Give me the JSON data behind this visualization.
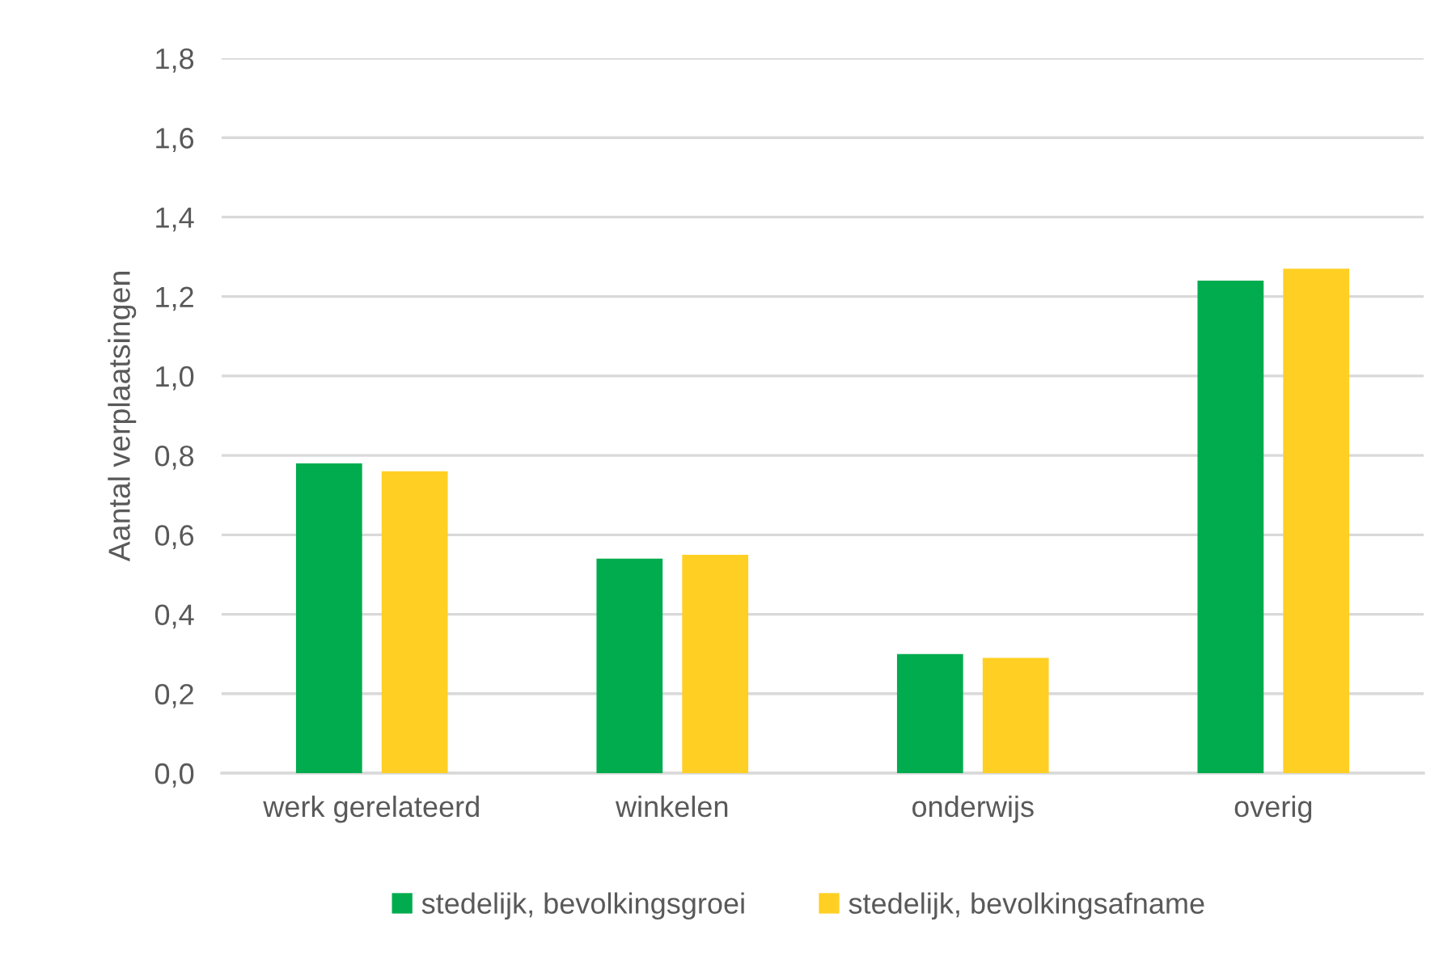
{
  "chart_data": {
    "type": "bar",
    "ylabel": "Aantal verplaatsingen",
    "categories": [
      "werk gerelateerd",
      "winkelen",
      "onderwijs",
      "overig"
    ],
    "series": [
      {
        "name": "stedelijk, bevolkingsgroei",
        "color": "#00ac4e",
        "values": [
          0.78,
          0.54,
          0.3,
          1.24
        ]
      },
      {
        "name": "stedelijk, bevolkingsafname",
        "color": "#ffcf23",
        "values": [
          0.76,
          0.55,
          0.29,
          1.27
        ]
      }
    ],
    "ylim": [
      0,
      1.8
    ],
    "yticks": [
      {
        "value": 0,
        "label": "0,0"
      },
      {
        "value": 0.2,
        "label": "0,2"
      },
      {
        "value": 0.4,
        "label": "0,4"
      },
      {
        "value": 0.6,
        "label": "0,6"
      },
      {
        "value": 0.8,
        "label": "0,8"
      },
      {
        "value": 1.0,
        "label": "1,0"
      },
      {
        "value": 1.2,
        "label": "1,2"
      },
      {
        "value": 1.4,
        "label": "1,4"
      },
      {
        "value": 1.6,
        "label": "1,6"
      },
      {
        "value": 1.8,
        "label": "1,8"
      }
    ],
    "grid": "y",
    "legend": "bottom"
  }
}
